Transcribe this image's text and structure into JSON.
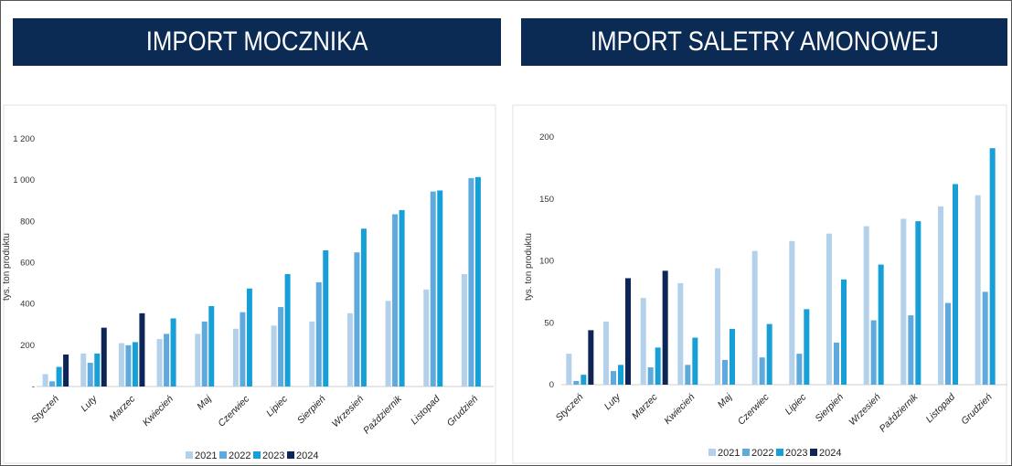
{
  "colors": {
    "s2021": "#b3d1ea",
    "s2022": "#5ea9dd",
    "s2023": "#17a0d8",
    "s2024": "#0d2557",
    "title_bg": "#0b2b55"
  },
  "chart_data": [
    {
      "type": "bar",
      "title": "IMPORT MOCZNIKA",
      "ylabel": "tys. ton produktu",
      "ylim": [
        0,
        1200
      ],
      "y_ticks": [
        "-",
        "200",
        "400",
        "600",
        "800",
        "1 000",
        "1 200"
      ],
      "categories": [
        "Styczeń",
        "Luty",
        "Marzec",
        "Kwiecień",
        "Maj",
        "Czerwiec",
        "Lipiec",
        "Sierpień",
        "Wrzesień",
        "Październik",
        "Listopad",
        "Grudzień"
      ],
      "series": [
        {
          "name": "2021",
          "values": [
            60,
            160,
            210,
            230,
            255,
            280,
            295,
            315,
            355,
            415,
            470,
            545
          ]
        },
        {
          "name": "2022",
          "values": [
            25,
            115,
            200,
            255,
            315,
            360,
            385,
            505,
            650,
            835,
            945,
            1010
          ]
        },
        {
          "name": "2023",
          "values": [
            95,
            160,
            215,
            330,
            390,
            475,
            545,
            660,
            765,
            855,
            950,
            1015
          ]
        },
        {
          "name": "2024",
          "values": [
            155,
            285,
            355,
            null,
            null,
            null,
            null,
            null,
            null,
            null,
            null,
            null
          ]
        }
      ],
      "legend": "bottom"
    },
    {
      "type": "bar",
      "title": "IMPORT SALETRY AMONOWEJ",
      "ylabel": "tys. ton produktu",
      "ylim": [
        0,
        200
      ],
      "y_ticks": [
        "0",
        "50",
        "100",
        "150",
        "200"
      ],
      "categories": [
        "Styczeń",
        "Luty",
        "Marzec",
        "Kwiecień",
        "Maj",
        "Czerwiec",
        "Lipiec",
        "Sierpień",
        "Wrzesień",
        "Październik",
        "Listopad",
        "Grudzień"
      ],
      "series": [
        {
          "name": "2021",
          "values": [
            25,
            51,
            70,
            82,
            94,
            108,
            116,
            122,
            128,
            134,
            144,
            153
          ]
        },
        {
          "name": "2022",
          "values": [
            3,
            11,
            14,
            16,
            20,
            22,
            25,
            34,
            52,
            56,
            66,
            75
          ]
        },
        {
          "name": "2023",
          "values": [
            8,
            16,
            30,
            38,
            45,
            49,
            61,
            85,
            97,
            132,
            162,
            191
          ]
        },
        {
          "name": "2024",
          "values": [
            44,
            86,
            92,
            null,
            null,
            null,
            null,
            null,
            null,
            null,
            null,
            null
          ]
        }
      ],
      "legend": "bottom"
    }
  ]
}
